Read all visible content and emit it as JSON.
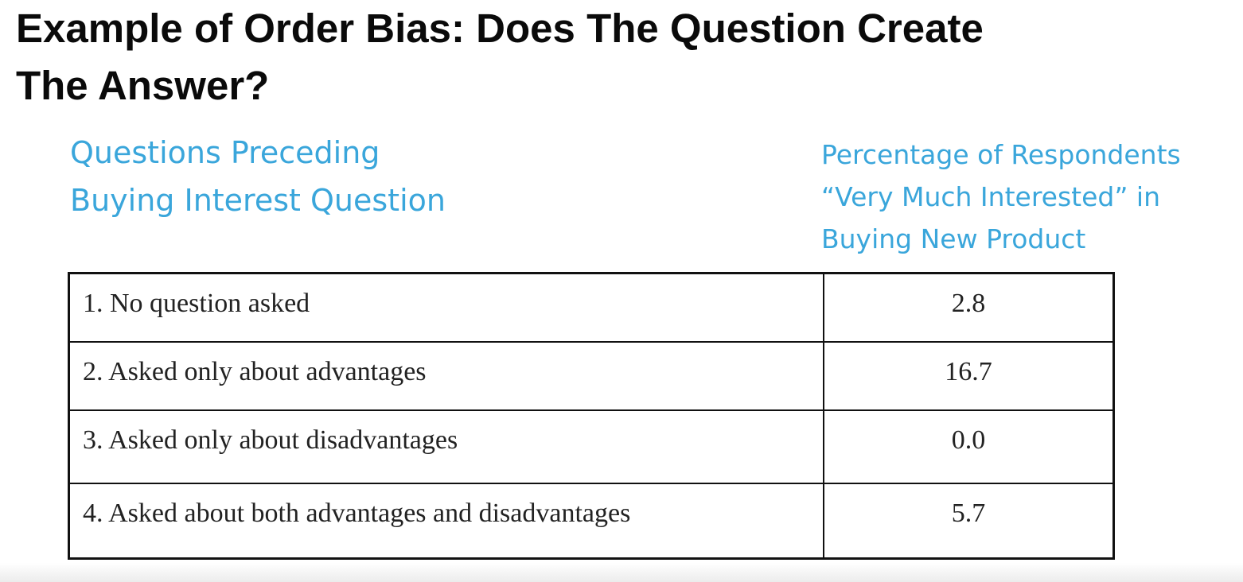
{
  "slide": {
    "title_line1": "Example of Order Bias: Does The Question Create",
    "title_line2": "The Answer?"
  },
  "table_headers": {
    "left_line1": "Questions Preceding",
    "left_line2": "Buying Interest Question",
    "right_line1": "Percentage of Respondents",
    "right_line2": "“Very Much Interested” in",
    "right_line3": "Buying New Product"
  },
  "rows": [
    {
      "label": "1. No question asked",
      "value": "2.8"
    },
    {
      "label": "2. Asked only about advantages",
      "value": "16.7"
    },
    {
      "label": "3. Asked only about disadvantages",
      "value": "0.0"
    },
    {
      "label": "4. Asked about both advantages and disadvantages",
      "value": "5.7"
    }
  ]
}
